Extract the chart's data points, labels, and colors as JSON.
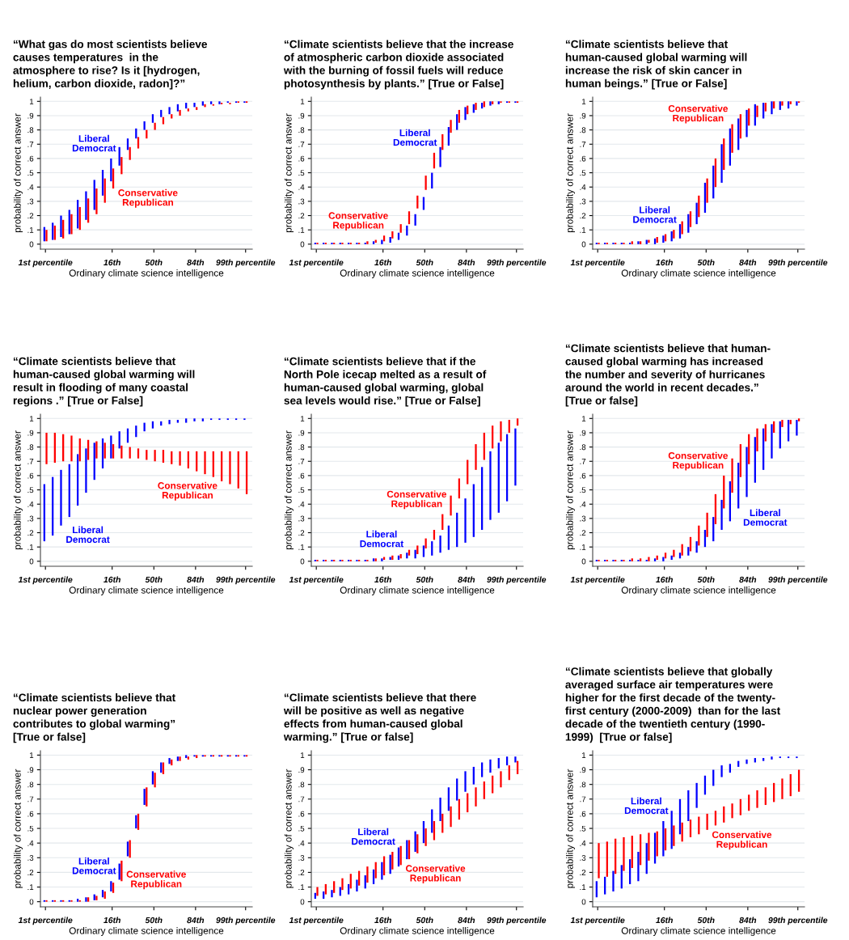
{
  "chart_data": [
    {
      "type": "bar",
      "title": "“What gas do most scientists believe\ncauses temperatures  in the\natmosphere to rise? Is it [hydrogen,\nhelium, carbon dioxide, radon]?”",
      "xlabel": "Ordinary climate science intelligence",
      "ylabel": "probability of correct answer",
      "categories": [
        "1st percentile",
        null,
        null,
        null,
        null,
        null,
        null,
        null,
        "16th",
        null,
        null,
        null,
        null,
        "50th",
        null,
        null,
        null,
        null,
        "84th",
        null,
        null,
        null,
        null,
        null,
        "99th percentile"
      ],
      "ylim": [
        -0.035,
        1.03
      ],
      "yticks": [
        0,
        {
          "value": 0.1,
          "label": ".1"
        },
        {
          "value": 0.2,
          "label": ".2"
        },
        {
          "value": 0.3,
          "label": ".3"
        },
        {
          "value": 0.4,
          "label": ".4"
        },
        {
          "value": 0.5,
          "label": ".5"
        },
        {
          "value": 0.6,
          "label": ".6"
        },
        {
          "value": 0.7,
          "label": ".7"
        },
        {
          "value": 0.8,
          "label": ".8"
        },
        {
          "value": 0.9,
          "label": ".9"
        },
        1
      ],
      "grid": "y",
      "series": [
        {
          "name": "Liberal\nDemocrat",
          "color": "#0000ff",
          "base": [
            0.02,
            0.03,
            0.05,
            0.07,
            0.11,
            0.17,
            0.24,
            0.34,
            0.44,
            0.55,
            0.66,
            0.74,
            0.8,
            0.85,
            0.89,
            0.91,
            0.93,
            0.95,
            0.96,
            0.97,
            0.98,
            0.98,
            0.99,
            0.99,
            0.99
          ],
          "values": [
            0.1,
            0.12,
            0.15,
            0.17,
            0.2,
            0.2,
            0.21,
            0.18,
            0.16,
            0.13,
            0.08,
            0.07,
            0.06,
            0.06,
            0.05,
            0.05,
            0.05,
            0.04,
            0.03,
            0.03,
            0.02,
            0.02,
            0.01,
            0.01,
            0.01
          ]
        },
        {
          "name": "Conservative\nRepublican",
          "color": "#ff0000",
          "base": [
            0.02,
            0.03,
            0.04,
            0.07,
            0.1,
            0.15,
            0.21,
            0.29,
            0.39,
            0.49,
            0.59,
            0.67,
            0.74,
            0.8,
            0.84,
            0.88,
            0.9,
            0.93,
            0.94,
            0.96,
            0.97,
            0.98,
            0.98,
            0.99,
            0.99
          ],
          "values": [
            0.08,
            0.1,
            0.13,
            0.14,
            0.16,
            0.17,
            0.18,
            0.17,
            0.14,
            0.12,
            0.09,
            0.08,
            0.06,
            0.05,
            0.05,
            0.03,
            0.04,
            0.02,
            0.02,
            0.02,
            0.01,
            0.01,
            0.01,
            0.01,
            0.01
          ]
        }
      ]
    },
    {
      "type": "bar",
      "title": "“Climate scientists believe that the increase\nof atmospheric carbon dioxide associated\nwith the burning of fossil fuels will reduce\nphotosynthesis by plants.” [True or False]",
      "xlabel": "Ordinary climate science intelligence",
      "ylabel": "probability of correct answer",
      "categories": [
        "1st percentile",
        null,
        null,
        null,
        null,
        null,
        null,
        null,
        "16th",
        null,
        null,
        null,
        null,
        "50th",
        null,
        null,
        null,
        null,
        "84th",
        null,
        null,
        null,
        null,
        null,
        "99th percentile"
      ],
      "ylim": [
        -0.035,
        1.03
      ],
      "yticks": [
        0,
        {
          "value": 0.1,
          "label": ".1"
        },
        {
          "value": 0.2,
          "label": ".2"
        },
        {
          "value": 0.3,
          "label": ".3"
        },
        {
          "value": 0.4,
          "label": ".4"
        },
        {
          "value": 0.5,
          "label": ".5"
        },
        {
          "value": 0.6,
          "label": ".6"
        },
        {
          "value": 0.7,
          "label": ".7"
        },
        {
          "value": 0.8,
          "label": ".8"
        },
        {
          "value": 0.9,
          "label": ".9"
        },
        1
      ],
      "grid": "y",
      "series": [
        {
          "name": "Liberal\nDemocrat",
          "color": "#0000ff",
          "base": [
            0,
            0,
            0,
            0,
            0,
            0,
            0,
            0,
            0,
            0.01,
            0.03,
            0.06,
            0.13,
            0.24,
            0.39,
            0.54,
            0.69,
            0.8,
            0.87,
            0.92,
            0.95,
            0.97,
            0.98,
            0.99,
            0.99
          ],
          "values": [
            0.01,
            0.01,
            0.01,
            0.01,
            0.01,
            0.01,
            0.01,
            0.02,
            0.03,
            0.04,
            0.05,
            0.07,
            0.08,
            0.09,
            0.11,
            0.14,
            0.13,
            0.11,
            0.09,
            0.06,
            0.04,
            0.03,
            0.02,
            0.01,
            0.01
          ]
        },
        {
          "name": "Conservative\nRepublican",
          "color": "#ff0000",
          "base": [
            0,
            0,
            0,
            0,
            0,
            0,
            0,
            0.01,
            0.02,
            0.04,
            0.08,
            0.14,
            0.25,
            0.38,
            0.53,
            0.66,
            0.78,
            0.85,
            0.91,
            0.94,
            0.96,
            0.98,
            0.99,
            0.99,
            0.99
          ],
          "values": [
            0.01,
            0.01,
            0.01,
            0.01,
            0.01,
            0.01,
            0.02,
            0.02,
            0.04,
            0.05,
            0.06,
            0.09,
            0.09,
            0.1,
            0.11,
            0.11,
            0.09,
            0.09,
            0.06,
            0.05,
            0.04,
            0.02,
            0.01,
            0.01,
            0.01
          ]
        }
      ]
    },
    {
      "type": "bar",
      "title": "“Climate scientists believe that\nhuman-caused global warming will\nincrease the risk of skin cancer in\nhuman beings.” [True or False]",
      "xlabel": "Ordinary climate science intelligence",
      "ylabel": "probability of correct answer",
      "categories": [
        "1st percentile",
        null,
        null,
        null,
        null,
        null,
        null,
        null,
        "16th",
        null,
        null,
        null,
        null,
        "50th",
        null,
        null,
        null,
        null,
        "84th",
        null,
        null,
        null,
        null,
        null,
        "99th percentile"
      ],
      "ylim": [
        -0.035,
        1.03
      ],
      "yticks": [
        0,
        {
          "value": 0.1,
          "label": ".1"
        },
        {
          "value": 0.2,
          "label": ".2"
        },
        {
          "value": 0.3,
          "label": ".3"
        },
        {
          "value": 0.4,
          "label": ".4"
        },
        {
          "value": 0.5,
          "label": ".5"
        },
        {
          "value": 0.6,
          "label": ".6"
        },
        {
          "value": 0.7,
          "label": ".7"
        },
        {
          "value": 0.8,
          "label": ".8"
        },
        {
          "value": 0.9,
          "label": ".9"
        },
        1
      ],
      "grid": "y",
      "series": [
        {
          "name": "Liberal\nDemocrat",
          "color": "#0000ff",
          "base": [
            0,
            0,
            0,
            0,
            0,
            0,
            0,
            0,
            0.01,
            0.02,
            0.04,
            0.08,
            0.14,
            0.22,
            0.32,
            0.43,
            0.55,
            0.66,
            0.75,
            0.83,
            0.88,
            0.91,
            0.94,
            0.95,
            0.97
          ],
          "values": [
            0.01,
            0.01,
            0.01,
            0.01,
            0.01,
            0.02,
            0.03,
            0.04,
            0.05,
            0.07,
            0.1,
            0.13,
            0.15,
            0.21,
            0.23,
            0.27,
            0.26,
            0.22,
            0.19,
            0.15,
            0.11,
            0.09,
            0.06,
            0.05,
            0.03
          ]
        },
        {
          "name": "Conservative\nRepublican",
          "color": "#ff0000",
          "base": [
            0,
            0,
            0,
            0,
            0,
            0,
            0.01,
            0.01,
            0.02,
            0.04,
            0.07,
            0.12,
            0.19,
            0.29,
            0.4,
            0.52,
            0.64,
            0.74,
            0.83,
            0.89,
            0.93,
            0.95,
            0.97,
            0.98,
            0.99
          ],
          "values": [
            0.01,
            0.01,
            0.01,
            0.01,
            0.02,
            0.02,
            0.02,
            0.04,
            0.05,
            0.06,
            0.09,
            0.11,
            0.15,
            0.17,
            0.2,
            0.22,
            0.2,
            0.17,
            0.12,
            0.08,
            0.06,
            0.05,
            0.03,
            0.02,
            0.01
          ]
        }
      ]
    },
    {
      "type": "bar",
      "title": "“Climate scientists believe that\nhuman-caused global warming will\nresult in flooding of many coastal\nregions .” [True or False]",
      "xlabel": "Ordinary climate science intelligence",
      "ylabel": "probability of correct answer",
      "categories": [
        "1st percentile",
        null,
        null,
        null,
        null,
        null,
        null,
        null,
        "16th",
        null,
        null,
        null,
        null,
        "50th",
        null,
        null,
        null,
        null,
        "84th",
        null,
        null,
        null,
        null,
        null,
        "99th percentile"
      ],
      "ylim": [
        -0.035,
        1.03
      ],
      "yticks": [
        0,
        {
          "value": 0.1,
          "label": ".1"
        },
        {
          "value": 0.2,
          "label": ".2"
        },
        {
          "value": 0.3,
          "label": ".3"
        },
        {
          "value": 0.4,
          "label": ".4"
        },
        {
          "value": 0.5,
          "label": ".5"
        },
        {
          "value": 0.6,
          "label": ".6"
        },
        {
          "value": 0.7,
          "label": ".7"
        },
        {
          "value": 0.8,
          "label": ".8"
        },
        {
          "value": 0.9,
          "label": ".9"
        },
        1
      ],
      "grid": "y",
      "series": [
        {
          "name": "Liberal\nDemocrat",
          "color": "#0000ff",
          "base": [
            0.14,
            0.18,
            0.25,
            0.31,
            0.39,
            0.48,
            0.57,
            0.65,
            0.72,
            0.79,
            0.83,
            0.87,
            0.91,
            0.93,
            0.95,
            0.96,
            0.97,
            0.97,
            0.98,
            0.98,
            0.99,
            0.99,
            0.99,
            0.99,
            0.99
          ],
          "values": [
            0.4,
            0.41,
            0.39,
            0.37,
            0.36,
            0.31,
            0.26,
            0.21,
            0.16,
            0.12,
            0.1,
            0.08,
            0.06,
            0.05,
            0.03,
            0.03,
            0.02,
            0.03,
            0.02,
            0.02,
            0.01,
            0.01,
            0.01,
            0.01,
            0.01
          ]
        },
        {
          "name": "Conservative\nRepublican",
          "color": "#ff0000",
          "base": [
            0.68,
            0.69,
            0.7,
            0.7,
            0.7,
            0.71,
            0.72,
            0.72,
            0.72,
            0.72,
            0.72,
            0.72,
            0.71,
            0.7,
            0.69,
            0.68,
            0.67,
            0.65,
            0.63,
            0.61,
            0.59,
            0.56,
            0.54,
            0.51,
            0.47
          ],
          "values": [
            0.22,
            0.21,
            0.19,
            0.18,
            0.16,
            0.14,
            0.12,
            0.11,
            0.1,
            0.09,
            0.08,
            0.07,
            0.07,
            0.08,
            0.09,
            0.09,
            0.1,
            0.12,
            0.14,
            0.16,
            0.18,
            0.21,
            0.23,
            0.26,
            0.3
          ]
        }
      ]
    },
    {
      "type": "bar",
      "title": "“Climate scientists believe that if the\nNorth Pole icecap melted as a result of\nhuman-caused global warming, global\nsea levels would rise.” [True or False]",
      "xlabel": "Ordinary climate science intelligence",
      "ylabel": "probability of correct answer",
      "categories": [
        "1st percentile",
        null,
        null,
        null,
        null,
        null,
        null,
        null,
        "16th",
        null,
        null,
        null,
        null,
        "50th",
        null,
        null,
        null,
        null,
        "84th",
        null,
        null,
        null,
        null,
        null,
        "99th percentile"
      ],
      "ylim": [
        -0.035,
        1.03
      ],
      "yticks": [
        0,
        {
          "value": 0.1,
          "label": ".1"
        },
        {
          "value": 0.2,
          "label": ".2"
        },
        {
          "value": 0.3,
          "label": ".3"
        },
        {
          "value": 0.4,
          "label": ".4"
        },
        {
          "value": 0.5,
          "label": ".5"
        },
        {
          "value": 0.6,
          "label": ".6"
        },
        {
          "value": 0.7,
          "label": ".7"
        },
        {
          "value": 0.8,
          "label": ".8"
        },
        {
          "value": 0.9,
          "label": ".9"
        },
        1
      ],
      "grid": "y",
      "series": [
        {
          "name": "Liberal\nDemocrat",
          "color": "#0000ff",
          "base": [
            0,
            0,
            0,
            0,
            0,
            0,
            0,
            0,
            0,
            0.01,
            0.01,
            0.02,
            0.02,
            0.03,
            0.04,
            0.06,
            0.08,
            0.1,
            0.13,
            0.17,
            0.22,
            0.29,
            0.34,
            0.42,
            0.53
          ],
          "values": [
            0.01,
            0.01,
            0.01,
            0.01,
            0.01,
            0.01,
            0.01,
            0.02,
            0.02,
            0.02,
            0.03,
            0.04,
            0.06,
            0.08,
            0.1,
            0.12,
            0.17,
            0.24,
            0.31,
            0.37,
            0.44,
            0.48,
            0.49,
            0.47,
            0.4
          ]
        },
        {
          "name": "Conservative\nRepublican",
          "color": "#ff0000",
          "base": [
            0,
            0,
            0,
            0,
            0,
            0,
            0,
            0,
            0.01,
            0.01,
            0.02,
            0.04,
            0.05,
            0.09,
            0.15,
            0.22,
            0.32,
            0.44,
            0.54,
            0.64,
            0.71,
            0.79,
            0.84,
            0.9,
            0.95
          ],
          "values": [
            0.01,
            0.01,
            0.01,
            0.01,
            0.01,
            0.01,
            0.01,
            0.02,
            0.02,
            0.03,
            0.03,
            0.04,
            0.06,
            0.07,
            0.07,
            0.11,
            0.14,
            0.14,
            0.17,
            0.18,
            0.19,
            0.16,
            0.14,
            0.09,
            0.05
          ]
        }
      ]
    },
    {
      "type": "bar",
      "title": "“Climate scientists believe that human-\ncaused global warming has increased\nthe number and severity of hurricanes\naround the world in recent decades.”\n[True or false]",
      "xlabel": "Ordinary climate science intelligence",
      "ylabel": "probability of correct answer",
      "categories": [
        "1st percentile",
        null,
        null,
        null,
        null,
        null,
        null,
        null,
        "16th",
        null,
        null,
        null,
        null,
        "50th",
        null,
        null,
        null,
        null,
        "84th",
        null,
        null,
        null,
        null,
        null,
        "99th percentile"
      ],
      "ylim": [
        -0.035,
        1.03
      ],
      "yticks": [
        0,
        {
          "value": 0.1,
          "label": ".1"
        },
        {
          "value": 0.2,
          "label": ".2"
        },
        {
          "value": 0.3,
          "label": ".3"
        },
        {
          "value": 0.4,
          "label": ".4"
        },
        {
          "value": 0.5,
          "label": ".5"
        },
        {
          "value": 0.6,
          "label": ".6"
        },
        {
          "value": 0.7,
          "label": ".7"
        },
        {
          "value": 0.8,
          "label": ".8"
        },
        {
          "value": 0.9,
          "label": ".9"
        },
        1
      ],
      "grid": "y",
      "series": [
        {
          "name": "Liberal\nDemocrat",
          "color": "#0000ff",
          "base": [
            0,
            0,
            0,
            0,
            0,
            0,
            0,
            0,
            0,
            0.01,
            0.02,
            0.04,
            0.06,
            0.1,
            0.14,
            0.22,
            0.28,
            0.37,
            0.45,
            0.55,
            0.64,
            0.72,
            0.79,
            0.84,
            0.88
          ],
          "values": [
            0.01,
            0.01,
            0.01,
            0.01,
            0.01,
            0.01,
            0.01,
            0.02,
            0.03,
            0.03,
            0.04,
            0.06,
            0.08,
            0.12,
            0.17,
            0.21,
            0.28,
            0.32,
            0.35,
            0.32,
            0.29,
            0.24,
            0.19,
            0.15,
            0.11
          ]
        },
        {
          "name": "Conservative\nRepublican",
          "color": "#ff0000",
          "base": [
            0,
            0,
            0,
            0,
            0,
            0,
            0,
            0.01,
            0.02,
            0.03,
            0.04,
            0.07,
            0.11,
            0.17,
            0.26,
            0.37,
            0.48,
            0.59,
            0.68,
            0.77,
            0.84,
            0.9,
            0.94,
            0.96,
            0.98
          ],
          "values": [
            0.01,
            0.01,
            0.01,
            0.01,
            0.02,
            0.02,
            0.03,
            0.03,
            0.04,
            0.05,
            0.08,
            0.1,
            0.14,
            0.17,
            0.21,
            0.23,
            0.24,
            0.23,
            0.21,
            0.16,
            0.12,
            0.08,
            0.05,
            0.03,
            0.02
          ]
        }
      ]
    },
    {
      "type": "bar",
      "title": "“Climate scientists believe that\nnuclear power generation\ncontributes to global warming”\n[True or false]",
      "xlabel": "Ordinary climate science intelligence",
      "ylabel": "probability of correct answer",
      "categories": [
        "1st percentile",
        null,
        null,
        null,
        null,
        null,
        null,
        null,
        "16th",
        null,
        null,
        null,
        null,
        "50th",
        null,
        null,
        null,
        null,
        "84th",
        null,
        null,
        null,
        null,
        null,
        "99th percentile"
      ],
      "ylim": [
        -0.035,
        1.03
      ],
      "yticks": [
        0,
        {
          "value": 0.1,
          "label": ".1"
        },
        {
          "value": 0.2,
          "label": ".2"
        },
        {
          "value": 0.3,
          "label": ".3"
        },
        {
          "value": 0.4,
          "label": ".4"
        },
        {
          "value": 0.5,
          "label": ".5"
        },
        {
          "value": 0.6,
          "label": ".6"
        },
        {
          "value": 0.7,
          "label": ".7"
        },
        {
          "value": 0.8,
          "label": ".8"
        },
        {
          "value": 0.9,
          "label": ".9"
        },
        1
      ],
      "grid": "y",
      "series": [
        {
          "name": "Liberal\nDemocrat",
          "color": "#0000ff",
          "base": [
            0,
            0,
            0,
            0,
            0,
            0,
            0.01,
            0.03,
            0.07,
            0.15,
            0.31,
            0.5,
            0.66,
            0.8,
            0.88,
            0.94,
            0.96,
            0.98,
            0.99,
            0.99,
            0.99,
            0.99,
            0.99,
            0.99,
            0.99
          ],
          "values": [
            0.01,
            0.01,
            0.01,
            0.01,
            0.02,
            0.03,
            0.04,
            0.05,
            0.07,
            0.11,
            0.1,
            0.09,
            0.11,
            0.09,
            0.07,
            0.04,
            0.03,
            0.02,
            0.01,
            0.01,
            0.01,
            0.01,
            0.01,
            0.01,
            0.01
          ]
        },
        {
          "name": "Conservative\nRepublican",
          "color": "#ff0000",
          "base": [
            0,
            0,
            0,
            0,
            0,
            0,
            0.01,
            0.02,
            0.06,
            0.14,
            0.3,
            0.49,
            0.65,
            0.78,
            0.87,
            0.93,
            0.96,
            0.97,
            0.98,
            0.99,
            0.99,
            0.99,
            0.99,
            0.99,
            0.99
          ],
          "values": [
            0.01,
            0.01,
            0.01,
            0.01,
            0.01,
            0.03,
            0.03,
            0.05,
            0.07,
            0.14,
            0.12,
            0.11,
            0.13,
            0.1,
            0.08,
            0.04,
            0.03,
            0.02,
            0.02,
            0.01,
            0.01,
            0.01,
            0.01,
            0.01,
            0.01
          ]
        }
      ]
    },
    {
      "type": "bar",
      "title": "“Climate scientists believe that there\nwill be positive as well as negative\neffects from human-caused global\nwarming.” [True or false]",
      "xlabel": "Ordinary climate science intelligence",
      "ylabel": "probability of correct answer",
      "categories": [
        "1st percentile",
        null,
        null,
        null,
        null,
        null,
        null,
        null,
        "16th",
        null,
        null,
        null,
        null,
        "50th",
        null,
        null,
        null,
        null,
        "84th",
        null,
        null,
        null,
        null,
        null,
        "99th percentile"
      ],
      "ylim": [
        -0.035,
        1.03
      ],
      "yticks": [
        0,
        {
          "value": 0.1,
          "label": ".1"
        },
        {
          "value": 0.2,
          "label": ".2"
        },
        {
          "value": 0.3,
          "label": ".3"
        },
        {
          "value": 0.4,
          "label": ".4"
        },
        {
          "value": 0.5,
          "label": ".5"
        },
        {
          "value": 0.6,
          "label": ".6"
        },
        {
          "value": 0.7,
          "label": ".7"
        },
        {
          "value": 0.8,
          "label": ".8"
        },
        {
          "value": 0.9,
          "label": ".9"
        },
        1
      ],
      "grid": "y",
      "series": [
        {
          "name": "Liberal\nDemocrat",
          "color": "#0000ff",
          "base": [
            0.02,
            0.02,
            0.03,
            0.04,
            0.05,
            0.07,
            0.09,
            0.12,
            0.15,
            0.19,
            0.24,
            0.29,
            0.34,
            0.4,
            0.47,
            0.55,
            0.62,
            0.69,
            0.75,
            0.8,
            0.85,
            0.88,
            0.91,
            0.93,
            0.95
          ],
          "values": [
            0.04,
            0.05,
            0.05,
            0.06,
            0.07,
            0.08,
            0.09,
            0.1,
            0.12,
            0.13,
            0.13,
            0.13,
            0.14,
            0.15,
            0.16,
            0.16,
            0.16,
            0.15,
            0.14,
            0.12,
            0.1,
            0.09,
            0.07,
            0.06,
            0.04
          ]
        },
        {
          "name": "Conservative\nRepublican",
          "color": "#ff0000",
          "base": [
            0.04,
            0.05,
            0.06,
            0.08,
            0.09,
            0.11,
            0.13,
            0.16,
            0.18,
            0.22,
            0.25,
            0.29,
            0.33,
            0.38,
            0.42,
            0.47,
            0.51,
            0.56,
            0.61,
            0.65,
            0.7,
            0.74,
            0.78,
            0.83,
            0.87
          ],
          "values": [
            0.06,
            0.07,
            0.08,
            0.08,
            0.1,
            0.1,
            0.11,
            0.11,
            0.13,
            0.12,
            0.13,
            0.13,
            0.13,
            0.12,
            0.13,
            0.13,
            0.14,
            0.14,
            0.13,
            0.13,
            0.12,
            0.12,
            0.11,
            0.1,
            0.09
          ]
        }
      ]
    },
    {
      "type": "bar",
      "title": "“Climate scientists believe that globally\naveraged surface air temperatures were\nhigher for the first decade of the twenty-\nfirst century (2000-2009)  than for the last\ndecade of the twentieth century (1990-\n1999)  [True or false]",
      "xlabel": "Ordinary climate science intelligence",
      "ylabel": "probability of correct answer",
      "categories": [
        "1st percentile",
        null,
        null,
        null,
        null,
        null,
        null,
        null,
        "16th",
        null,
        null,
        null,
        null,
        "50th",
        null,
        null,
        null,
        null,
        "84th",
        null,
        null,
        null,
        null,
        null,
        "99th percentile"
      ],
      "ylim": [
        -0.035,
        1.03
      ],
      "yticks": [
        0,
        {
          "value": 0.1,
          "label": ".1"
        },
        {
          "value": 0.2,
          "label": ".2"
        },
        {
          "value": 0.3,
          "label": ".3"
        },
        {
          "value": 0.4,
          "label": ".4"
        },
        {
          "value": 0.5,
          "label": ".5"
        },
        {
          "value": 0.6,
          "label": ".6"
        },
        {
          "value": 0.7,
          "label": ".7"
        },
        {
          "value": 0.8,
          "label": ".8"
        },
        {
          "value": 0.9,
          "label": ".9"
        },
        1
      ],
      "grid": "y",
      "series": [
        {
          "name": "Liberal\nDemocrat",
          "color": "#0000ff",
          "base": [
            0.03,
            0.05,
            0.07,
            0.09,
            0.12,
            0.14,
            0.19,
            0.26,
            0.31,
            0.36,
            0.46,
            0.55,
            0.64,
            0.73,
            0.79,
            0.85,
            0.88,
            0.92,
            0.94,
            0.95,
            0.96,
            0.97,
            0.98,
            0.98,
            0.98
          ],
          "values": [
            0.11,
            0.12,
            0.14,
            0.16,
            0.17,
            0.2,
            0.21,
            0.21,
            0.24,
            0.26,
            0.24,
            0.21,
            0.17,
            0.13,
            0.11,
            0.08,
            0.06,
            0.04,
            0.03,
            0.03,
            0.02,
            0.02,
            0.01,
            0.01,
            0.01
          ]
        },
        {
          "name": "Conservative\nRepublican",
          "color": "#ff0000",
          "base": [
            0.16,
            0.17,
            0.19,
            0.21,
            0.23,
            0.25,
            0.28,
            0.31,
            0.35,
            0.38,
            0.41,
            0.44,
            0.46,
            0.49,
            0.52,
            0.54,
            0.57,
            0.59,
            0.62,
            0.64,
            0.66,
            0.68,
            0.7,
            0.72,
            0.75
          ],
          "values": [
            0.24,
            0.24,
            0.24,
            0.23,
            0.22,
            0.21,
            0.19,
            0.17,
            0.15,
            0.14,
            0.13,
            0.12,
            0.12,
            0.11,
            0.1,
            0.11,
            0.1,
            0.11,
            0.11,
            0.12,
            0.12,
            0.13,
            0.14,
            0.15,
            0.15
          ]
        }
      ]
    }
  ]
}
